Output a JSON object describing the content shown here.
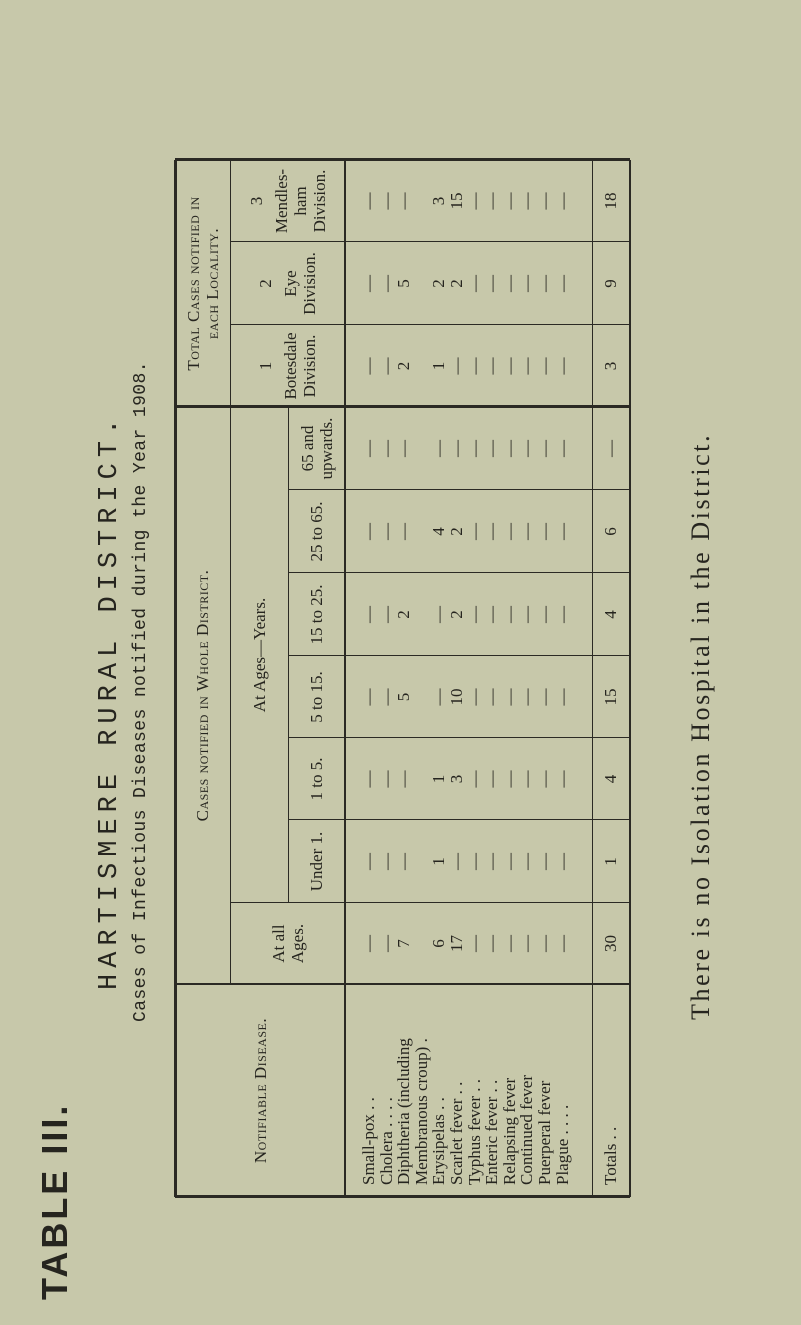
{
  "document": {
    "table_label": "TABLE III.",
    "heading": "HARTISMERE RURAL DISTRICT.",
    "subtitle": "Cases of Infectious Diseases notified during the Year 1908.",
    "footnote": "There is no Isolation Hospital in the District."
  },
  "table": {
    "disease_header": "Notifiable Disease.",
    "whole_district_header": "Cases notified in Whole District.",
    "at_all_ages_header": "At all\nAges.",
    "at_ages_header": "At Ages—Years.",
    "age_groups": [
      "Under 1.",
      "1 to 5.",
      "5 to 15.",
      "15 to 25.",
      "25 to 65.",
      "65 and\nupwards."
    ],
    "locality_header": "Total Cases notified in\neach Locality.",
    "localities": [
      {
        "number": "1",
        "name": "Botesdale\nDivision."
      },
      {
        "number": "2",
        "name": "Eye\nDivision."
      },
      {
        "number": "3",
        "name": "Mendles-\nham\nDivision."
      }
    ],
    "rows": [
      {
        "disease": [
          "Small-pox      . ."
        ],
        "all": "—",
        "ages": [
          "—",
          "—",
          "—",
          "—",
          "—",
          "—"
        ],
        "localities": [
          "—",
          "—",
          "—"
        ]
      },
      {
        "disease": [
          "Cholera . .          . ."
        ],
        "all": "—",
        "ages": [
          "—",
          "—",
          "—",
          "—",
          "—",
          "—"
        ],
        "localities": [
          "—",
          "—",
          "—"
        ]
      },
      {
        "disease": [
          "Diphtheria   (including",
          "    Membranous croup) ."
        ],
        "all": "7",
        "ages": [
          "—",
          "—",
          "5",
          "2",
          "—",
          "—"
        ],
        "localities": [
          "2",
          "5",
          "—"
        ]
      },
      {
        "disease": [
          "Erysipelas          . ."
        ],
        "all": "6",
        "ages": [
          "1",
          "1",
          "—",
          "—",
          "4",
          "—"
        ],
        "localities": [
          "1",
          "2",
          "3"
        ]
      },
      {
        "disease": [
          "Scarlet  fever   . ."
        ],
        "all": "17",
        "ages": [
          "—",
          "3",
          "10",
          "2",
          "2",
          "—"
        ],
        "localities": [
          "—",
          "2",
          "15"
        ]
      },
      {
        "disease": [
          "Typhus  fever   . ."
        ],
        "all": "—",
        "ages": [
          "—",
          "—",
          "—",
          "—",
          "—",
          "—"
        ],
        "localities": [
          "—",
          "—",
          "—"
        ]
      },
      {
        "disease": [
          "Enteric  fever  . ."
        ],
        "all": "—",
        "ages": [
          "—",
          "—",
          "—",
          "—",
          "—",
          "—"
        ],
        "localities": [
          "—",
          "—",
          "—"
        ]
      },
      {
        "disease": [
          "Relapsing  fever"
        ],
        "all": "—",
        "ages": [
          "—",
          "—",
          "—",
          "—",
          "—",
          "—"
        ],
        "localities": [
          "—",
          "—",
          "—"
        ]
      },
      {
        "disease": [
          "Continued  fever"
        ],
        "all": "—",
        "ages": [
          "—",
          "—",
          "—",
          "—",
          "—",
          "—"
        ],
        "localities": [
          "—",
          "—",
          "—"
        ]
      },
      {
        "disease": [
          "Puerperal  fever"
        ],
        "all": "—",
        "ages": [
          "—",
          "—",
          "—",
          "—",
          "—",
          "—"
        ],
        "localities": [
          "—",
          "—",
          "—"
        ]
      },
      {
        "disease": [
          "Plague . .          . ."
        ],
        "all": "—",
        "ages": [
          "—",
          "—",
          "—",
          "—",
          "—",
          "—"
        ],
        "localities": [
          "—",
          "—",
          "—"
        ]
      }
    ],
    "totals": {
      "label": "Totals          . .",
      "all": "30",
      "ages": [
        "1",
        "4",
        "15",
        "4",
        "6",
        "—"
      ],
      "localities": [
        "3",
        "9",
        "18"
      ]
    }
  }
}
